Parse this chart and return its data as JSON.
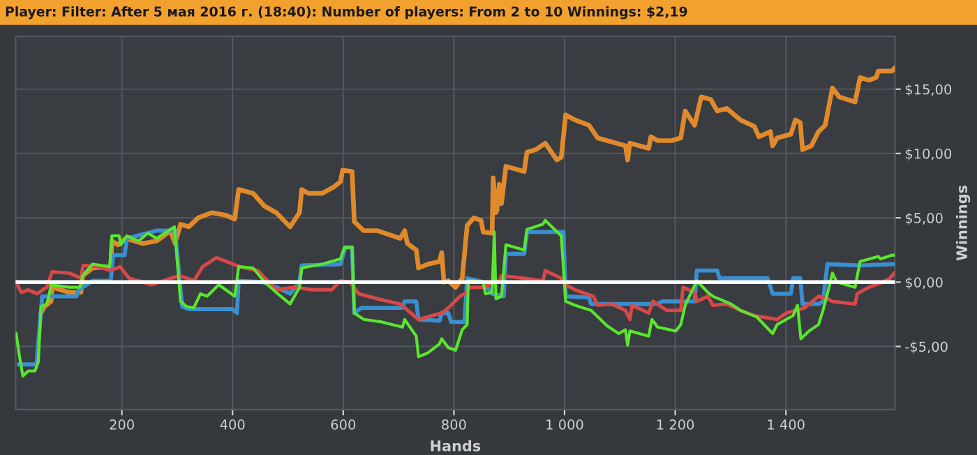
{
  "chart_data": {
    "type": "line",
    "title": "Player: Filter: After 5 мая 2016 г. (18:40): Number of players: From 2 to 10 Winnings: $2,19",
    "xlabel": "Hands",
    "ylabel": "Winnings",
    "xlim": [
      8,
      1597
    ],
    "ylim": [
      -9.9,
      19.1
    ],
    "xticks": [
      200,
      400,
      600,
      800,
      {
        "value": 1000,
        "label": "1 000"
      },
      {
        "value": 1200,
        "label": "1 200"
      },
      {
        "value": 1400,
        "label": "1 400"
      }
    ],
    "yticks": [
      {
        "value": -5,
        "label": "-$5,00"
      },
      {
        "value": 0,
        "label": "$0,00"
      },
      {
        "value": 5,
        "label": "$5,00"
      },
      {
        "value": 10,
        "label": "$10,00"
      },
      {
        "value": 15,
        "label": "$15,00"
      }
    ],
    "grid": true,
    "legend": false,
    "line_style": "solid",
    "marker": "none",
    "ref_lines": [
      {
        "axis": "y",
        "value": 0,
        "color": "#ffffff"
      }
    ],
    "series": [
      {
        "color": "#e08a2c",
        "x": [
          54,
          60,
          72,
          74,
          105,
          126,
          129,
          147,
          180,
          182,
          193,
          207,
          238,
          263,
          288,
          296,
          306,
          321,
          338,
          363,
          388,
          404,
          411,
          437,
          458,
          479,
          504,
          521,
          525,
          537,
          562,
          583,
          595,
          599,
          616,
          620,
          637,
          662,
          703,
          711,
          716,
          732,
          736,
          753,
          774,
          778,
          782,
          790,
          803,
          815,
          824,
          836,
          849,
          853,
          869,
          871,
          876,
          878,
          882,
          886,
          894,
          927,
          932,
          948,
          965,
          986,
          994,
          1002,
          1019,
          1044,
          1060,
          1077,
          1110,
          1114,
          1118,
          1152,
          1156,
          1168,
          1193,
          1210,
          1218,
          1235,
          1247,
          1264,
          1276,
          1293,
          1318,
          1343,
          1351,
          1372,
          1376,
          1384,
          1409,
          1417,
          1426,
          1430,
          1446,
          1459,
          1471,
          1484,
          1496,
          1525,
          1534,
          1550,
          1563,
          1567,
          1592,
          1596
        ],
        "values": [
          -2.4,
          -1.9,
          -1.5,
          -0.4,
          -0.8,
          -0.8,
          0.5,
          1.1,
          1.2,
          3.2,
          2.9,
          3.4,
          3.0,
          3.2,
          4.0,
          3.0,
          4.5,
          4.3,
          5.0,
          5.4,
          5.2,
          4.9,
          7.2,
          6.9,
          5.9,
          5.4,
          4.3,
          5.4,
          7.2,
          6.9,
          6.9,
          7.4,
          7.8,
          8.7,
          8.6,
          4.7,
          4.0,
          4.0,
          3.4,
          4.0,
          3.0,
          2.5,
          1.1,
          1.4,
          1.6,
          2.3,
          0.0,
          0.1,
          -0.4,
          0.3,
          4.4,
          5.0,
          4.8,
          3.9,
          3.8,
          8.1,
          5.4,
          5.6,
          7.6,
          6.1,
          9.0,
          8.6,
          10.1,
          10.3,
          10.8,
          9.5,
          9.7,
          13.0,
          12.6,
          12.2,
          11.2,
          11.0,
          10.6,
          9.5,
          10.8,
          10.4,
          11.3,
          11.0,
          11.0,
          11.2,
          13.3,
          12.2,
          14.4,
          14.2,
          13.3,
          13.5,
          12.6,
          12.1,
          11.3,
          11.7,
          10.6,
          11.2,
          11.5,
          12.6,
          12.4,
          10.3,
          10.6,
          11.7,
          12.2,
          15.1,
          14.4,
          14.0,
          15.9,
          15.7,
          15.9,
          16.4,
          16.4,
          16.6
        ]
      },
      {
        "color": "#3a8fd0",
        "x": [
          14,
          46,
          47,
          56,
          118,
          122,
          147,
          180,
          184,
          205,
          209,
          263,
          296,
          309,
          321,
          400,
          408,
          411,
          454,
          479,
          504,
          521,
          525,
          595,
          604,
          616,
          620,
          633,
          707,
          711,
          732,
          736,
          774,
          778,
          790,
          795,
          819,
          824,
          844,
          853,
          869,
          890,
          894,
          927,
          932,
          998,
          1002,
          1044,
          1048,
          1168,
          1176,
          1235,
          1239,
          1276,
          1280,
          1367,
          1376,
          1409,
          1413,
          1426,
          1430,
          1459,
          1467,
          1475,
          1534,
          1596
        ],
        "values": [
          -6.4,
          -6.4,
          -5.7,
          -1.1,
          -1.1,
          -0.6,
          0.1,
          0.1,
          2.1,
          2.1,
          3.4,
          4.0,
          4.0,
          -1.9,
          -2.1,
          -2.1,
          -2.4,
          0.1,
          0.0,
          -0.4,
          -0.9,
          0.0,
          1.3,
          1.4,
          2.7,
          2.7,
          -2.4,
          -2.0,
          -2.0,
          -1.5,
          -1.5,
          -2.9,
          -3.0,
          -2.4,
          -2.4,
          -3.1,
          -3.1,
          0.3,
          0.1,
          0.0,
          -0.9,
          -1.1,
          2.2,
          2.2,
          3.9,
          3.9,
          -1.1,
          -1.2,
          -1.7,
          -1.7,
          -1.5,
          -1.5,
          0.9,
          0.9,
          0.3,
          0.3,
          -0.9,
          -0.9,
          0.3,
          0.3,
          -1.7,
          -1.7,
          -1.5,
          1.4,
          1.3,
          1.4
        ]
      },
      {
        "color": "#d84848",
        "x": [
          9,
          18,
          31,
          47,
          64,
          74,
          105,
          126,
          130,
          155,
          180,
          197,
          213,
          255,
          288,
          305,
          330,
          346,
          371,
          413,
          446,
          479,
          512,
          545,
          579,
          595,
          612,
          628,
          662,
          703,
          736,
          761,
          778,
          790,
          811,
          824,
          828,
          853,
          882,
          886,
          927,
          961,
          965,
          994,
          1002,
          1019,
          1052,
          1060,
          1085,
          1110,
          1118,
          1122,
          1152,
          1160,
          1185,
          1210,
          1214,
          1235,
          1239,
          1259,
          1268,
          1293,
          1318,
          1343,
          1384,
          1401,
          1434,
          1459,
          1475,
          1484,
          1525,
          1529,
          1550,
          1575,
          1588,
          1596
        ],
        "values": [
          0.0,
          -0.8,
          -0.6,
          -0.9,
          -0.4,
          0.8,
          0.7,
          0.3,
          1.3,
          1.2,
          0.9,
          1.2,
          0.3,
          -0.2,
          0.3,
          0.5,
          0.1,
          1.2,
          1.9,
          1.2,
          0.9,
          -0.6,
          -0.4,
          -0.6,
          -0.6,
          0.1,
          0.0,
          -0.9,
          -1.3,
          -1.7,
          -2.9,
          -2.6,
          -2.4,
          -2.0,
          -1.1,
          -0.8,
          -0.4,
          -0.4,
          0.1,
          0.5,
          0.3,
          0.1,
          0.9,
          0.3,
          -0.2,
          -0.6,
          -1.1,
          -1.8,
          -1.7,
          -2.2,
          -2.9,
          -1.8,
          -2.4,
          -1.5,
          -2.2,
          -2.2,
          -0.4,
          -0.8,
          -1.5,
          -1.1,
          -1.8,
          -1.7,
          -2.2,
          -2.6,
          -2.9,
          -2.4,
          -2.0,
          -1.1,
          -1.3,
          -1.5,
          -1.7,
          -0.9,
          -0.4,
          0.0,
          0.3,
          0.7
        ]
      },
      {
        "color": "#5ae62e",
        "x": [
          9,
          14,
          21,
          31,
          43,
          49,
          54,
          64,
          68,
          72,
          105,
          124,
          129,
          147,
          178,
          182,
          195,
          198,
          209,
          230,
          247,
          263,
          288,
          295,
          306,
          317,
          330,
          342,
          354,
          375,
          404,
          411,
          437,
          458,
          479,
          504,
          521,
          525,
          562,
          595,
          602,
          616,
          620,
          637,
          670,
          707,
          711,
          732,
          736,
          753,
          774,
          778,
          790,
          803,
          815,
          824,
          826,
          836,
          853,
          857,
          869,
          873,
          876,
          886,
          894,
          927,
          932,
          961,
          965,
          994,
          1002,
          1019,
          1048,
          1077,
          1098,
          1110,
          1114,
          1118,
          1152,
          1158,
          1168,
          1201,
          1210,
          1218,
          1239,
          1259,
          1268,
          1301,
          1318,
          1347,
          1376,
          1384,
          1413,
          1421,
          1427,
          1442,
          1459,
          1467,
          1475,
          1484,
          1492,
          1525,
          1534,
          1567,
          1571,
          1592,
          1596
        ],
        "values": [
          -4.0,
          -5.5,
          -7.3,
          -6.9,
          -6.9,
          -6.2,
          -1.9,
          -1.7,
          -1.1,
          -0.2,
          -0.4,
          -0.4,
          0.5,
          1.4,
          1.2,
          3.6,
          3.6,
          2.9,
          3.6,
          3.2,
          3.8,
          3.4,
          4.1,
          4.3,
          -1.5,
          -1.9,
          -2.0,
          -0.9,
          -1.1,
          -0.2,
          -1.1,
          1.2,
          1.1,
          0.0,
          -0.8,
          -1.7,
          -0.4,
          1.1,
          1.4,
          1.8,
          2.7,
          2.7,
          -2.4,
          -2.9,
          -3.1,
          -3.5,
          -2.9,
          -4.2,
          -5.8,
          -5.5,
          -4.8,
          -4.4,
          -5.1,
          -5.3,
          -3.7,
          -3.3,
          0.1,
          0.1,
          0.0,
          -0.9,
          -0.8,
          3.9,
          -1.3,
          -1.1,
          2.9,
          2.5,
          4.1,
          4.5,
          4.8,
          3.6,
          -1.5,
          -1.8,
          -2.2,
          -3.4,
          -4.0,
          -3.7,
          -4.9,
          -3.8,
          -4.2,
          -2.9,
          -3.5,
          -3.8,
          -3.3,
          -1.8,
          0.1,
          -0.8,
          -1.1,
          -1.7,
          -2.2,
          -2.7,
          -4.0,
          -3.3,
          -2.6,
          -1.8,
          -4.4,
          -3.8,
          -3.3,
          -2.2,
          -0.9,
          0.7,
          0.0,
          -0.4,
          1.6,
          2.0,
          1.8,
          2.1,
          2.1
        ]
      }
    ]
  }
}
